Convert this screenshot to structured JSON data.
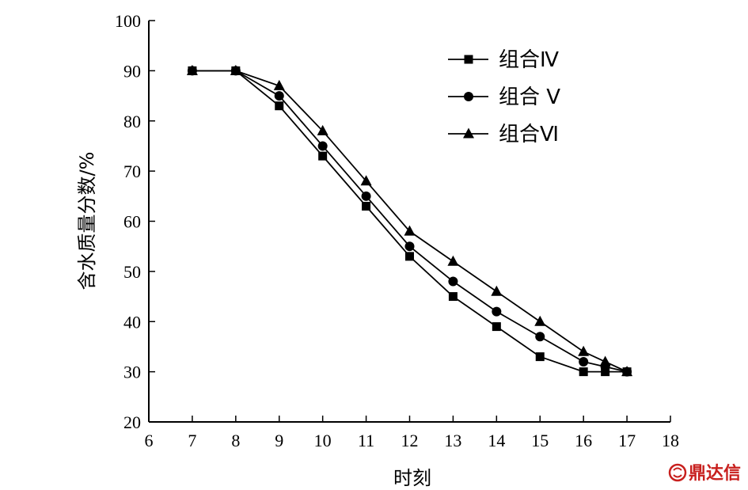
{
  "chart_data": {
    "type": "line",
    "xlabel": "时刻",
    "ylabel": "含水质量分数/%",
    "xlim": [
      6,
      18
    ],
    "ylim": [
      20,
      100
    ],
    "xticks": [
      6,
      7,
      8,
      9,
      10,
      11,
      12,
      13,
      14,
      15,
      16,
      17,
      18
    ],
    "yticks": [
      20,
      30,
      40,
      50,
      60,
      70,
      80,
      90,
      100
    ],
    "grid": false,
    "legend_position": "top-right",
    "series": [
      {
        "name": "组合Ⅳ",
        "marker": "square",
        "x": [
          7,
          8,
          9,
          10,
          11,
          12,
          13,
          14,
          15,
          16,
          16.5,
          17
        ],
        "y": [
          90,
          90,
          83,
          73,
          63,
          53,
          45,
          39,
          33,
          30,
          30,
          30
        ]
      },
      {
        "name": "组合 V",
        "marker": "circle",
        "x": [
          7,
          8,
          9,
          10,
          11,
          12,
          13,
          14,
          15,
          16,
          16.5,
          17
        ],
        "y": [
          90,
          90,
          85,
          75,
          65,
          55,
          48,
          42,
          37,
          32,
          31,
          30
        ]
      },
      {
        "name": "组合Ⅵ",
        "marker": "triangle",
        "x": [
          7,
          8,
          9,
          10,
          11,
          12,
          13,
          14,
          15,
          16,
          16.5,
          17
        ],
        "y": [
          90,
          90,
          87,
          78,
          68,
          58,
          52,
          46,
          40,
          34,
          32,
          30
        ]
      }
    ]
  },
  "watermark": {
    "text": "鼎达信",
    "color": "#c8201e"
  }
}
